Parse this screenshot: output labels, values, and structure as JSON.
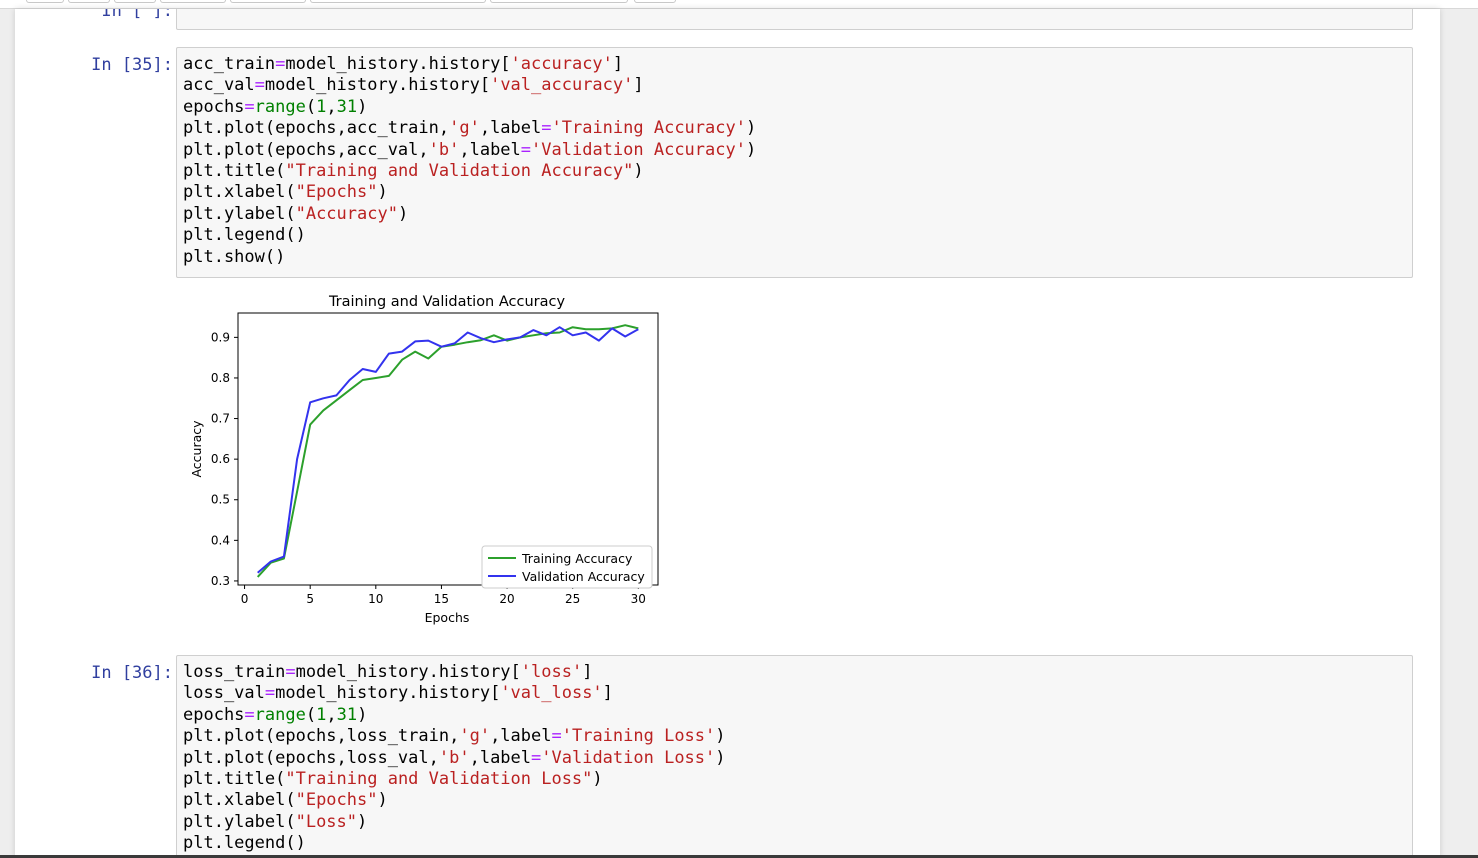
{
  "cells": {
    "empty": {
      "prompt": "In [ ]:"
    },
    "c35": {
      "prompt": "In [35]:",
      "lines": [
        {
          "a": "acc_train",
          "op": "=",
          "b": "model_history.history[",
          "s": "'accuracy'",
          "c": "]"
        },
        {
          "a": "acc_val",
          "op": "=",
          "b": "model_history.history[",
          "s": "'val_accuracy'",
          "c": "]"
        },
        {
          "a": "epochs",
          "op": "=",
          "b": "range",
          "c1": "(",
          "n1": "1",
          "c2": ",",
          "n2": "31",
          "c3": ")"
        },
        {
          "a": "plt.plot(epochs,acc_train,",
          "s1": "'g'",
          "b": ",label",
          "op": "=",
          "s2": "'Training Accuracy'",
          "c": ")"
        },
        {
          "a": "plt.plot(epochs,acc_val,",
          "s1": "'b'",
          "b": ",label",
          "op": "=",
          "s2": "'Validation Accuracy'",
          "c": ")"
        },
        {
          "a": "plt.title(",
          "s": "\"Training and Validation Accuracy\"",
          "c": ")"
        },
        {
          "a": "plt.xlabel(",
          "s": "\"Epochs\"",
          "c": ")"
        },
        {
          "a": "plt.ylabel(",
          "s": "\"Accuracy\"",
          "c": ")"
        },
        {
          "a": "plt.legend()"
        },
        {
          "a": "plt.show()"
        }
      ]
    },
    "c36": {
      "prompt": "In [36]:",
      "lines": [
        {
          "a": "loss_train",
          "op": "=",
          "b": "model_history.history[",
          "s": "'loss'",
          "c": "]"
        },
        {
          "a": "loss_val",
          "op": "=",
          "b": "model_history.history[",
          "s": "'val_loss'",
          "c": "]"
        },
        {
          "a": "epochs",
          "op": "=",
          "b": "range",
          "c1": "(",
          "n1": "1",
          "c2": ",",
          "n2": "31",
          "c3": ")"
        },
        {
          "a": "plt.plot(epochs,loss_train,",
          "s1": "'g'",
          "b": ",label",
          "op": "=",
          "s2": "'Training Loss'",
          "c": ")"
        },
        {
          "a": "plt.plot(epochs,loss_val,",
          "s1": "'b'",
          "b": ",label",
          "op": "=",
          "s2": "'Validation Loss'",
          "c": ")"
        },
        {
          "a": "plt.title(",
          "s": "\"Training and Validation Loss\"",
          "c": ")"
        },
        {
          "a": "plt.xlabel(",
          "s": "\"Epochs\"",
          "c": ")"
        },
        {
          "a": "plt.ylabel(",
          "s": "\"Loss\"",
          "c": ")"
        },
        {
          "a": "plt.legend()"
        }
      ]
    }
  },
  "chart_data": {
    "type": "line",
    "title": "Training and Validation Accuracy",
    "xlabel": "Epochs",
    "ylabel": "Accuracy",
    "xlim": [
      -0.5,
      31.5
    ],
    "ylim": [
      0.29,
      0.96
    ],
    "xticks": [
      0,
      5,
      10,
      15,
      20,
      25,
      30
    ],
    "yticks": [
      0.3,
      0.4,
      0.5,
      0.6,
      0.7,
      0.8,
      0.9
    ],
    "grid": false,
    "legend_position": "lower right",
    "x": [
      1,
      2,
      3,
      4,
      5,
      6,
      7,
      8,
      9,
      10,
      11,
      12,
      13,
      14,
      15,
      16,
      17,
      18,
      19,
      20,
      21,
      22,
      23,
      24,
      25,
      26,
      27,
      28,
      29,
      30
    ],
    "series": [
      {
        "name": "Training Accuracy",
        "color": "#2ca02c",
        "values": [
          0.31,
          0.345,
          0.355,
          0.52,
          0.685,
          0.72,
          0.745,
          0.77,
          0.795,
          0.8,
          0.805,
          0.845,
          0.865,
          0.848,
          0.877,
          0.882,
          0.888,
          0.893,
          0.905,
          0.892,
          0.9,
          0.905,
          0.91,
          0.912,
          0.925,
          0.92,
          0.92,
          0.922,
          0.93,
          0.922
        ]
      },
      {
        "name": "Validation Accuracy",
        "color": "#3333ee",
        "values": [
          0.32,
          0.348,
          0.36,
          0.6,
          0.74,
          0.75,
          0.757,
          0.795,
          0.822,
          0.815,
          0.86,
          0.865,
          0.89,
          0.892,
          0.877,
          0.885,
          0.912,
          0.898,
          0.888,
          0.895,
          0.9,
          0.918,
          0.905,
          0.925,
          0.905,
          0.912,
          0.892,
          0.922,
          0.902,
          0.92
        ]
      }
    ]
  }
}
